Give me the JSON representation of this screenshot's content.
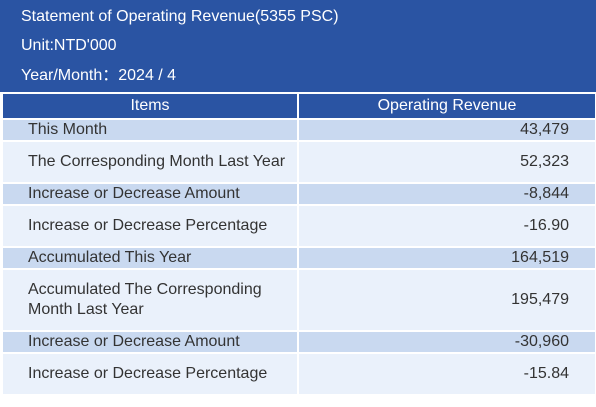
{
  "header": {
    "title": "Statement of Operating Revenue(5355 PSC)",
    "unit": "Unit:NTD'000",
    "period": "Year/Month：2024 / 4"
  },
  "table": {
    "columns": [
      "Items",
      "Operating Revenue"
    ],
    "rows": [
      {
        "item": "This Month",
        "value": "43,479"
      },
      {
        "item": "The Corresponding Month Last Year",
        "value": "52,323"
      },
      {
        "item": "Increase or Decrease Amount",
        "value": "-8,844"
      },
      {
        "item": "Increase or Decrease Percentage",
        "value": "-16.90"
      },
      {
        "item": "Accumulated This Year",
        "value": "164,519"
      },
      {
        "item": "Accumulated The Corresponding Month Last Year",
        "value": "195,479"
      },
      {
        "item": "Increase or Decrease Amount",
        "value": "-30,960"
      },
      {
        "item": "Increase or Decrease Percentage",
        "value": "-15.84"
      }
    ]
  },
  "colors": {
    "header_bg": "#2a54a3",
    "row_shaded": "#c9d9f0",
    "row_light": "#eaf1fb"
  }
}
